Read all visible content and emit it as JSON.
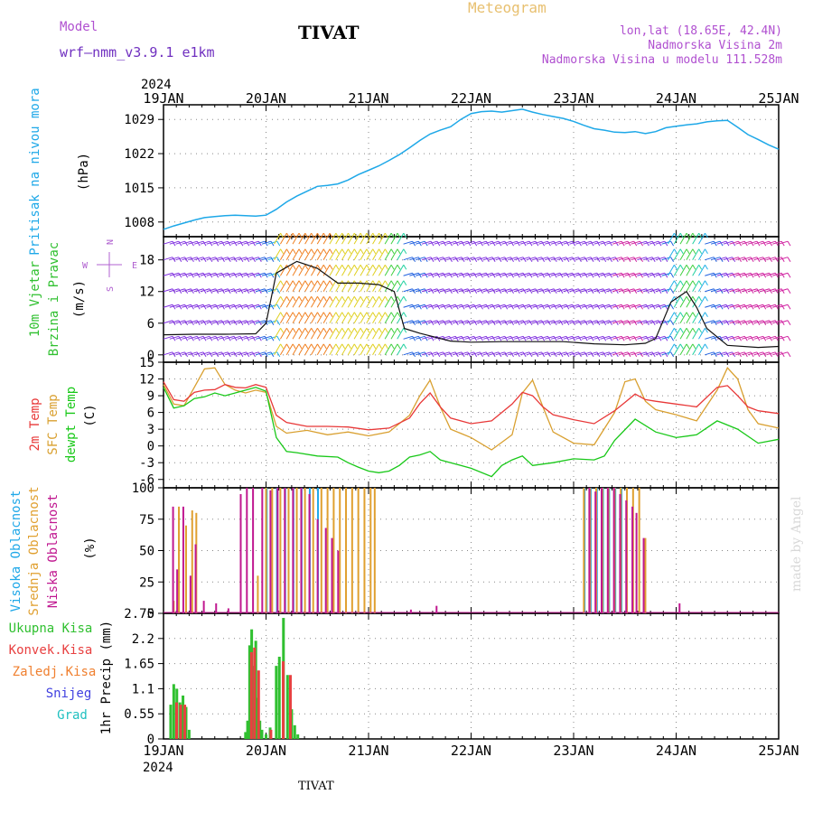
{
  "header": {
    "model_label": "Model",
    "model_name": "wrf—nmm_v3.9.1  e1km",
    "station_title": "TIVAT",
    "app_title": "Meteogram",
    "coords": "lon,lat (18.65E, 42.4N)",
    "elevation": "Nadmorska Visina 2m",
    "model_elevation": "Nadmorska Visina u modelu 111.528m"
  },
  "footer": {
    "station": "TIVAT",
    "credit": "made by Angel"
  },
  "colors": {
    "pressure": "#1ea8e8",
    "temp2m": "#e83838",
    "sfc": "#d9a030",
    "dewpt": "#18c818",
    "ukupna": "#30c030",
    "konvek": "#e84040",
    "zaledj": "#f08030",
    "snijeg": "#4040e0",
    "grad": "#20c0c0",
    "visoka": "#20a8e8",
    "srednja": "#e0a030",
    "niska": "#c01890",
    "wind_label": "#30c030",
    "compass": "#b060d0",
    "header_purple": "#b050d0",
    "meteogram_title": "#e8c070",
    "model_name": "#7030c0"
  },
  "time_axis": {
    "year": "2024",
    "ticks": [
      "19JAN",
      "20JAN",
      "21JAN",
      "22JAN",
      "23JAN",
      "24JAN",
      "25JAN"
    ]
  },
  "chart_data": [
    {
      "type": "line",
      "panel": "pressure",
      "ylabel_lines": [
        "Pritisak na nivou mora",
        "(hPa)"
      ],
      "yticks": [
        1008,
        1015,
        1022,
        1029
      ],
      "ylim": [
        1005,
        1032
      ],
      "grid": true,
      "series": [
        {
          "name": "Pritisak na nivou mora",
          "x": [
            0,
            0.1,
            0.2,
            0.3,
            0.4,
            0.5,
            0.6,
            0.7,
            0.8,
            0.9,
            1.0,
            1.1,
            1.2,
            1.3,
            1.4,
            1.5,
            1.6,
            1.7,
            1.8,
            1.9,
            2.0,
            2.1,
            2.2,
            2.3,
            2.4,
            2.5,
            2.6,
            2.7,
            2.8,
            2.9,
            3.0,
            3.1,
            3.2,
            3.3,
            3.4,
            3.5,
            3.6,
            3.7,
            3.8,
            3.9,
            4.0,
            4.1,
            4.2,
            4.3,
            4.4,
            4.5,
            4.6,
            4.7,
            4.8,
            4.9,
            5.0,
            5.1,
            5.2,
            5.3,
            5.4,
            5.5,
            5.6,
            5.7,
            5.8,
            5.9,
            6.0
          ],
          "values": [
            1006.5,
            1007.2,
            1007.8,
            1008.4,
            1008.9,
            1009.1,
            1009.3,
            1009.4,
            1009.3,
            1009.2,
            1009.4,
            1010.6,
            1012.1,
            1013.3,
            1014.3,
            1015.3,
            1015.5,
            1015.8,
            1016.6,
            1017.7,
            1018.6,
            1019.5,
            1020.6,
            1021.8,
            1023.2,
            1024.7,
            1026.0,
            1026.8,
            1027.5,
            1029.0,
            1030.2,
            1030.6,
            1030.7,
            1030.5,
            1030.8,
            1031.1,
            1030.5,
            1030.0,
            1029.6,
            1029.2,
            1028.6,
            1027.8,
            1027.1,
            1026.8,
            1026.4,
            1026.3,
            1026.5,
            1026.1,
            1026.5,
            1027.3,
            1027.6,
            1027.9,
            1028.1,
            1028.5,
            1028.7,
            1028.8,
            1027.4,
            1025.9,
            1024.9,
            1023.8,
            1022.9
          ]
        }
      ]
    },
    {
      "type": "line",
      "panel": "wind",
      "ylabel_lines": [
        "10m Vjetar",
        "Brzina i Pravac",
        "(m/s)"
      ],
      "compass": {
        "n": "N",
        "s": "S",
        "e": "E",
        "w": "W"
      },
      "yticks": [
        0,
        6,
        12,
        18
      ],
      "ylim": [
        -1.4,
        22.4
      ],
      "grid": true,
      "series": [
        {
          "name": "10m Vjetar",
          "x": [
            0,
            0.3,
            0.6,
            0.9,
            1.0,
            1.1,
            1.3,
            1.5,
            1.7,
            1.9,
            2.1,
            2.25,
            2.35,
            2.5,
            2.6,
            2.8,
            3.0,
            3.3,
            3.6,
            3.9,
            4.2,
            4.5,
            4.7,
            4.8,
            4.95,
            5.1,
            5.2,
            5.3,
            5.5,
            5.8,
            6.0
          ],
          "values": [
            3.8,
            3.9,
            3.9,
            4.0,
            6.0,
            15.5,
            17.7,
            16.4,
            13.6,
            13.6,
            13.3,
            12.0,
            5.0,
            4.1,
            3.6,
            2.6,
            2.4,
            2.5,
            2.5,
            2.5,
            2.1,
            1.9,
            2.2,
            3.1,
            10.0,
            12.0,
            9.0,
            5.0,
            1.8,
            1.4,
            1.6
          ]
        }
      ]
    },
    {
      "type": "line",
      "panel": "temperature",
      "ylabel_lines": [
        "2m Temp",
        "SFC Temp",
        "dewpt Temp",
        "(C)"
      ],
      "yticks": [
        -6,
        -3,
        0,
        3,
        6,
        9,
        12,
        15
      ],
      "ylim": [
        -7.5,
        15.0
      ],
      "grid": true,
      "series": [
        {
          "name": "2m Temp",
          "x": [
            0,
            0.1,
            0.2,
            0.3,
            0.4,
            0.5,
            0.6,
            0.7,
            0.8,
            0.9,
            1.0,
            1.1,
            1.2,
            1.4,
            1.6,
            1.8,
            2.0,
            2.2,
            2.4,
            2.5,
            2.6,
            2.7,
            2.8,
            3.0,
            3.2,
            3.4,
            3.5,
            3.6,
            3.7,
            3.8,
            4.0,
            4.2,
            4.4,
            4.5,
            4.6,
            4.7,
            4.8,
            5.0,
            5.2,
            5.4,
            5.5,
            5.6,
            5.7,
            5.8,
            6.0
          ],
          "values": [
            11.5,
            8.3,
            8.0,
            9.6,
            10.0,
            10.1,
            11.0,
            10.5,
            10.4,
            11.0,
            10.5,
            5.5,
            4.2,
            3.5,
            3.5,
            3.4,
            2.9,
            3.2,
            5.0,
            7.6,
            9.5,
            7.0,
            5.0,
            4.0,
            4.5,
            7.5,
            9.6,
            9.0,
            7.0,
            5.6,
            4.7,
            4.0,
            6.3,
            7.8,
            9.3,
            8.3,
            8.0,
            7.5,
            7.0,
            10.5,
            10.8,
            9.0,
            7.0,
            6.3,
            5.8
          ]
        },
        {
          "name": "SFC Temp",
          "x": [
            0,
            0.1,
            0.2,
            0.3,
            0.4,
            0.5,
            0.6,
            0.7,
            0.8,
            0.9,
            1.0,
            1.1,
            1.2,
            1.4,
            1.6,
            1.8,
            2.0,
            2.2,
            2.4,
            2.5,
            2.6,
            2.7,
            2.8,
            3.0,
            3.2,
            3.4,
            3.5,
            3.6,
            3.7,
            3.8,
            4.0,
            4.2,
            4.4,
            4.5,
            4.6,
            4.7,
            4.8,
            5.0,
            5.2,
            5.4,
            5.5,
            5.6,
            5.7,
            5.8,
            6.0
          ],
          "values": [
            11.0,
            7.5,
            7.2,
            10.5,
            13.8,
            14.0,
            11.0,
            10.0,
            9.5,
            10.0,
            9.6,
            3.5,
            2.3,
            2.8,
            2.0,
            2.5,
            1.8,
            2.5,
            5.5,
            9.0,
            11.8,
            7.0,
            3.0,
            1.5,
            -0.7,
            2.0,
            9.5,
            11.8,
            7.0,
            2.5,
            0.5,
            0.2,
            6.0,
            11.5,
            12.0,
            8.0,
            6.5,
            5.6,
            4.5,
            10.0,
            14.0,
            12.0,
            6.5,
            4.0,
            3.2
          ]
        },
        {
          "name": "dewpt Temp",
          "x": [
            0,
            0.1,
            0.2,
            0.3,
            0.4,
            0.5,
            0.6,
            0.7,
            0.8,
            0.9,
            1.0,
            1.1,
            1.2,
            1.3,
            1.5,
            1.7,
            1.8,
            1.9,
            2.0,
            2.1,
            2.2,
            2.3,
            2.4,
            2.5,
            2.6,
            2.7,
            2.8,
            3.0,
            3.2,
            3.3,
            3.4,
            3.5,
            3.6,
            3.8,
            4.0,
            4.2,
            4.3,
            4.4,
            4.6,
            4.8,
            5.0,
            5.2,
            5.4,
            5.6,
            5.8,
            6.0
          ],
          "values": [
            10.5,
            6.8,
            7.2,
            8.5,
            8.8,
            9.5,
            9.0,
            9.5,
            10.0,
            10.5,
            9.8,
            1.5,
            -1.0,
            -1.2,
            -1.8,
            -2.0,
            -3.0,
            -3.8,
            -4.5,
            -4.8,
            -4.5,
            -3.5,
            -2.0,
            -1.6,
            -1.0,
            -2.5,
            -3.0,
            -4.0,
            -5.5,
            -3.5,
            -2.5,
            -1.8,
            -3.5,
            -3.0,
            -2.3,
            -2.5,
            -1.8,
            1.0,
            4.8,
            2.5,
            1.5,
            2.0,
            4.5,
            3.0,
            0.5,
            1.2
          ]
        }
      ]
    },
    {
      "type": "bar",
      "panel": "cloud",
      "ylabel_lines": [
        "Visoka Oblacnost",
        "Srednja Oblacnost",
        "Niska Oblacnost",
        "(%)"
      ],
      "yticks": [
        0,
        25,
        50,
        75,
        100
      ],
      "ylim": [
        0,
        100
      ],
      "grid": true,
      "series": [
        {
          "name": "Visoka Oblacnost",
          "x": [
            1.02,
            1.12,
            1.2,
            1.28,
            1.36,
            1.44,
            1.52,
            4.12,
            4.18,
            4.24,
            4.3,
            4.36,
            4.42,
            4.48
          ],
          "values": [
            100,
            100,
            100,
            100,
            100,
            100,
            100,
            100,
            100,
            100,
            100,
            100,
            100,
            100
          ]
        },
        {
          "name": "Srednja Oblacnost",
          "x": [
            0.1,
            0.15,
            0.22,
            0.28,
            0.32,
            0.92,
            1.0,
            1.06,
            1.14,
            1.22,
            1.3,
            1.38,
            1.46,
            1.54,
            1.6,
            1.66,
            1.72,
            1.78,
            1.84,
            1.9,
            1.96,
            2.02,
            2.06,
            4.1,
            4.16,
            4.22,
            4.28,
            4.34,
            4.4,
            4.46,
            4.52,
            4.58,
            4.64,
            4.7
          ],
          "values": [
            10,
            85,
            70,
            82,
            80,
            30,
            100,
            100,
            100,
            100,
            100,
            100,
            100,
            100,
            100,
            100,
            100,
            100,
            100,
            100,
            100,
            100,
            100,
            100,
            100,
            100,
            100,
            100,
            100,
            100,
            100,
            100,
            100,
            60
          ]
        },
        {
          "name": "Niska Oblacnost",
          "x": [
            0.08,
            0.12,
            0.18,
            0.25,
            0.3,
            0.38,
            0.5,
            0.62,
            0.74,
            0.8,
            0.86,
            0.95,
            1.03,
            1.1,
            1.17,
            1.25,
            1.33,
            1.41,
            1.49,
            1.57,
            1.63,
            1.69,
            2.4,
            2.65,
            4.14,
            4.2,
            4.26,
            4.32,
            4.38,
            4.44,
            4.5,
            4.56,
            4.6,
            4.67,
            5.02
          ],
          "values": [
            85,
            35,
            85,
            30,
            55,
            10,
            8,
            4,
            95,
            100,
            100,
            100,
            98,
            100,
            100,
            100,
            100,
            95,
            75,
            68,
            60,
            50,
            3,
            6,
            100,
            97,
            100,
            100,
            100,
            95,
            90,
            85,
            80,
            60,
            8
          ]
        }
      ]
    },
    {
      "type": "bar",
      "panel": "precip",
      "ylabel_lines": [
        "1hr Precip (mm)"
      ],
      "legend_left": [
        "Ukupna Kisa",
        "Konvek.Kisa",
        "Zaledj.Kisa",
        "Snijeg",
        "Grad"
      ],
      "yticks": [
        0,
        0.55,
        1.1,
        1.65,
        2.2,
        2.75
      ],
      "ylim": [
        0,
        2.75
      ],
      "grid": true,
      "series": [
        {
          "name": "Ukupna Kisa",
          "x": [
            0.07,
            0.1,
            0.13,
            0.16,
            0.19,
            0.22,
            0.25,
            0.29,
            0.8,
            0.82,
            0.84,
            0.86,
            0.88,
            0.9,
            0.92,
            0.94,
            0.96,
            1.0,
            1.04,
            1.1,
            1.13,
            1.17,
            1.21,
            1.25,
            1.28,
            1.31
          ],
          "values": [
            0.75,
            1.2,
            1.1,
            0.8,
            0.95,
            0.7,
            0.2,
            0.0,
            0.15,
            0.4,
            2.05,
            2.4,
            1.6,
            2.15,
            0.9,
            0.4,
            0.2,
            0.1,
            0.25,
            1.6,
            1.8,
            2.65,
            1.4,
            0.65,
            0.3,
            0.1
          ]
        },
        {
          "name": "Konvek.Kisa",
          "x": [
            0.11,
            0.15,
            0.19,
            0.84,
            0.87,
            0.91,
            1.03,
            1.15,
            1.22
          ],
          "values": [
            0.8,
            0.75,
            0.75,
            1.9,
            2.0,
            1.5,
            0.2,
            1.7,
            1.4
          ]
        }
      ]
    }
  ]
}
